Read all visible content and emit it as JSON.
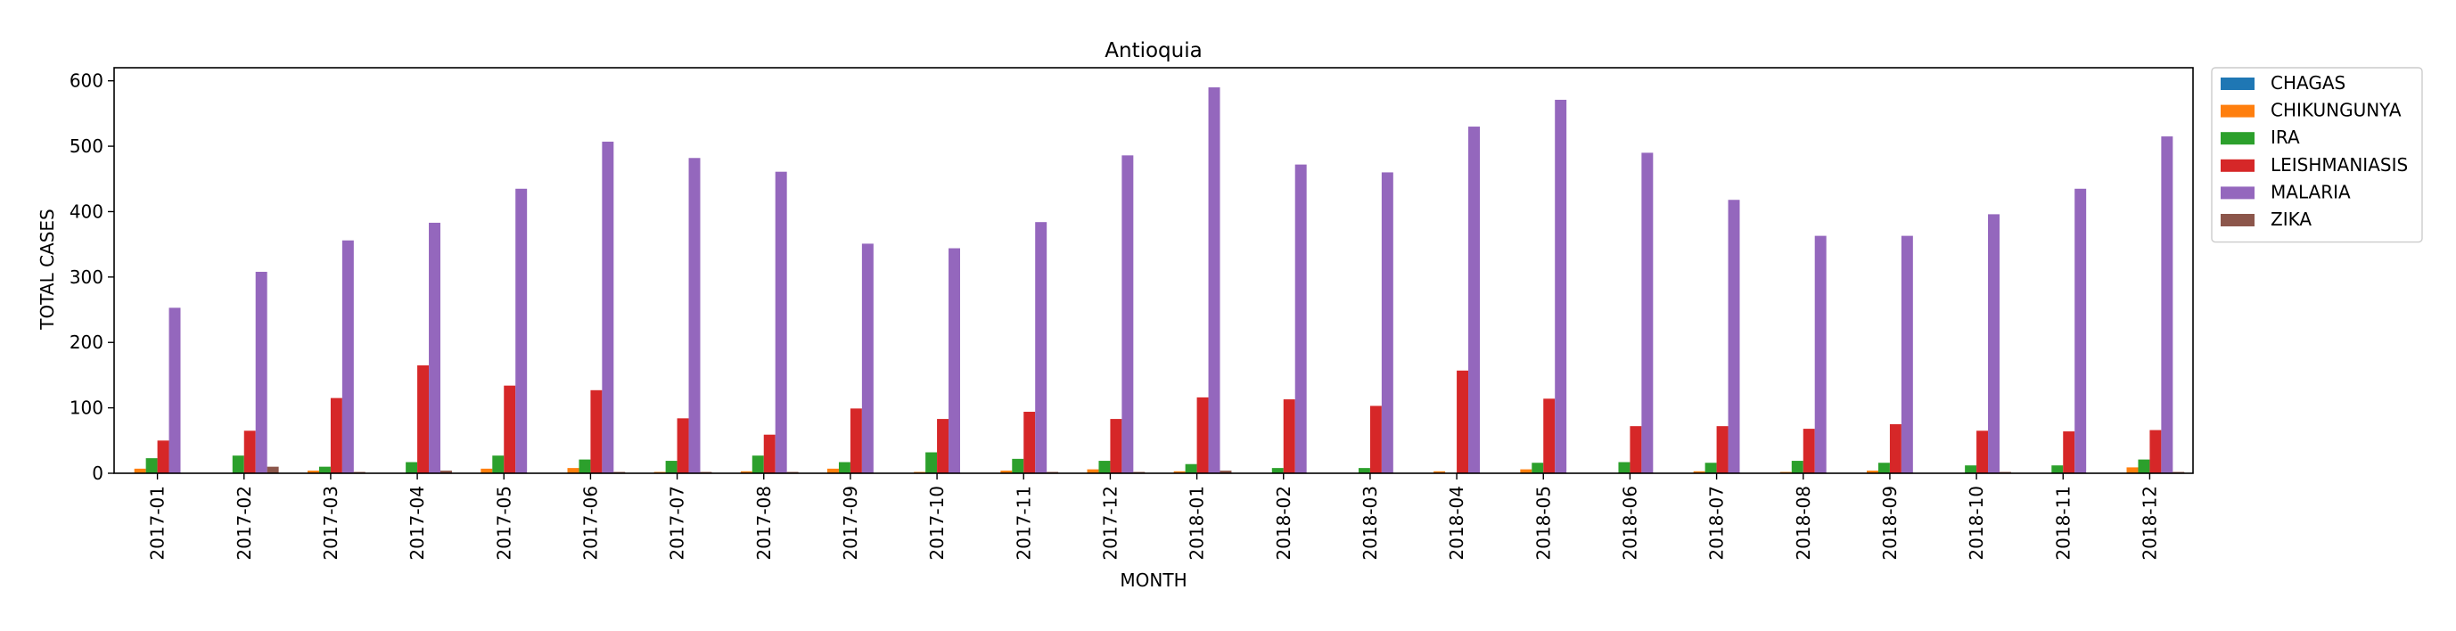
{
  "chart_data": {
    "type": "bar",
    "title": "Antioquia",
    "xlabel": "MONTH",
    "ylabel": "TOTAL CASES",
    "ylim": [
      0,
      620
    ],
    "yticks": [
      0,
      100,
      200,
      300,
      400,
      500,
      600
    ],
    "grid": false,
    "legend_position": "outside-top-right",
    "categories": [
      "2017-01",
      "2017-02",
      "2017-03",
      "2017-04",
      "2017-05",
      "2017-06",
      "2017-07",
      "2017-08",
      "2017-09",
      "2017-10",
      "2017-11",
      "2017-12",
      "2018-01",
      "2018-02",
      "2018-03",
      "2018-04",
      "2018-05",
      "2018-06",
      "2018-07",
      "2018-08",
      "2018-09",
      "2018-10",
      "2018-11",
      "2018-12"
    ],
    "series": [
      {
        "name": "CHAGAS",
        "color": "#1f77b4",
        "values": [
          0,
          0,
          0,
          0,
          0,
          0,
          0,
          0,
          0,
          0,
          0,
          0,
          0,
          0,
          0,
          0,
          0,
          0,
          0,
          0,
          0,
          0,
          0,
          0
        ]
      },
      {
        "name": "CHIKUNGUNYA",
        "color": "#ff7f0e",
        "values": [
          7,
          0,
          4,
          0,
          7,
          8,
          2,
          3,
          7,
          2,
          4,
          6,
          3,
          0,
          0,
          3,
          6,
          0,
          3,
          2,
          4,
          0,
          0,
          9
        ]
      },
      {
        "name": "IRA",
        "color": "#2ca02c",
        "values": [
          23,
          27,
          10,
          17,
          27,
          21,
          19,
          27,
          17,
          32,
          22,
          19,
          14,
          8,
          8,
          0,
          16,
          17,
          16,
          19,
          16,
          12,
          12,
          21
        ]
      },
      {
        "name": "LEISHMANIASIS",
        "color": "#d62728",
        "values": [
          50,
          65,
          115,
          165,
          134,
          127,
          84,
          59,
          99,
          83,
          94,
          83,
          116,
          113,
          103,
          157,
          114,
          72,
          72,
          68,
          75,
          65,
          64,
          66
        ]
      },
      {
        "name": "MALARIA",
        "color": "#9467bd",
        "values": [
          253,
          308,
          356,
          383,
          435,
          507,
          482,
          461,
          351,
          344,
          384,
          486,
          590,
          472,
          460,
          530,
          571,
          490,
          418,
          363,
          363,
          396,
          435,
          515
        ]
      },
      {
        "name": "ZIKA",
        "color": "#8c564b",
        "values": [
          0,
          10,
          2,
          4,
          0,
          2,
          2,
          2,
          0,
          0,
          2,
          2,
          4,
          0,
          0,
          0,
          0,
          0,
          0,
          0,
          0,
          2,
          0,
          2
        ]
      }
    ]
  }
}
